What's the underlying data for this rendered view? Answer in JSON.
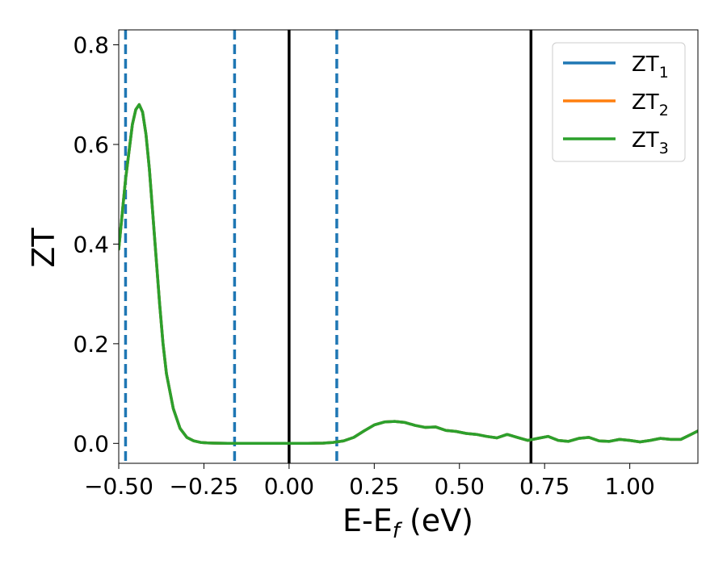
{
  "chart_data": {
    "type": "line",
    "title": "",
    "xlabel": "E-E",
    "xlabel_sub": "f",
    "xlabel_unit": " (eV)",
    "ylabel": "ZT",
    "xlim": [
      -0.5,
      1.2
    ],
    "ylim": [
      -0.04,
      0.83
    ],
    "grid": false,
    "legend_position": "top-right",
    "xticks": [
      -0.5,
      -0.25,
      0.0,
      0.25,
      0.5,
      0.75,
      1.0
    ],
    "xtick_labels": [
      "−0.50",
      "−0.25",
      "0.00",
      "0.25",
      "0.50",
      "0.75",
      "1.00"
    ],
    "yticks": [
      0.0,
      0.2,
      0.4,
      0.6,
      0.8
    ],
    "ytick_labels": [
      "0.0",
      "0.2",
      "0.4",
      "0.6",
      "0.8"
    ],
    "x": [
      -0.5,
      -0.48,
      -0.46,
      -0.45,
      -0.44,
      -0.43,
      -0.42,
      -0.41,
      -0.4,
      -0.39,
      -0.38,
      -0.37,
      -0.36,
      -0.34,
      -0.32,
      -0.3,
      -0.28,
      -0.26,
      -0.24,
      -0.22,
      -0.2,
      -0.18,
      -0.15,
      -0.1,
      -0.05,
      0.0,
      0.05,
      0.1,
      0.13,
      0.16,
      0.19,
      0.22,
      0.25,
      0.28,
      0.31,
      0.34,
      0.37,
      0.4,
      0.43,
      0.46,
      0.49,
      0.52,
      0.55,
      0.58,
      0.61,
      0.64,
      0.67,
      0.7,
      0.73,
      0.76,
      0.79,
      0.82,
      0.85,
      0.88,
      0.91,
      0.94,
      0.97,
      1.0,
      1.03,
      1.06,
      1.09,
      1.12,
      1.15,
      1.18,
      1.2
    ],
    "series": [
      {
        "name": "ZT",
        "sub": "1",
        "color": "#1f77b4",
        "values": [
          0.39,
          0.53,
          0.64,
          0.67,
          0.68,
          0.665,
          0.62,
          0.55,
          0.46,
          0.37,
          0.28,
          0.2,
          0.14,
          0.07,
          0.03,
          0.012,
          0.005,
          0.002,
          0.001,
          0.0005,
          0.0003,
          0.0002,
          0.0001,
          0.0,
          0.0,
          0.0,
          0.0,
          0.0005,
          0.002,
          0.005,
          0.012,
          0.025,
          0.037,
          0.043,
          0.044,
          0.042,
          0.036,
          0.032,
          0.033,
          0.026,
          0.024,
          0.02,
          0.018,
          0.014,
          0.011,
          0.018,
          0.012,
          0.006,
          0.01,
          0.014,
          0.006,
          0.004,
          0.01,
          0.012,
          0.005,
          0.004,
          0.008,
          0.006,
          0.003,
          0.006,
          0.01,
          0.008,
          0.008,
          0.018,
          0.025
        ]
      },
      {
        "name": "ZT",
        "sub": "2",
        "color": "#ff7f0e",
        "values": [
          0.39,
          0.53,
          0.64,
          0.67,
          0.68,
          0.665,
          0.62,
          0.55,
          0.46,
          0.37,
          0.28,
          0.2,
          0.14,
          0.07,
          0.03,
          0.012,
          0.005,
          0.002,
          0.001,
          0.0005,
          0.0003,
          0.0002,
          0.0001,
          0.0,
          0.0,
          0.0,
          0.0,
          0.0005,
          0.002,
          0.005,
          0.012,
          0.025,
          0.037,
          0.043,
          0.044,
          0.042,
          0.036,
          0.032,
          0.033,
          0.026,
          0.024,
          0.02,
          0.018,
          0.014,
          0.011,
          0.018,
          0.012,
          0.006,
          0.01,
          0.014,
          0.006,
          0.004,
          0.01,
          0.012,
          0.005,
          0.004,
          0.008,
          0.006,
          0.003,
          0.006,
          0.01,
          0.008,
          0.008,
          0.018,
          0.025
        ]
      },
      {
        "name": "ZT",
        "sub": "3",
        "color": "#2ca02c",
        "values": [
          0.39,
          0.53,
          0.64,
          0.67,
          0.68,
          0.665,
          0.62,
          0.55,
          0.46,
          0.37,
          0.28,
          0.2,
          0.14,
          0.07,
          0.03,
          0.012,
          0.005,
          0.002,
          0.001,
          0.0005,
          0.0003,
          0.0002,
          0.0001,
          0.0,
          0.0,
          0.0,
          0.0,
          0.0005,
          0.002,
          0.005,
          0.012,
          0.025,
          0.037,
          0.043,
          0.044,
          0.042,
          0.036,
          0.032,
          0.033,
          0.026,
          0.024,
          0.02,
          0.018,
          0.014,
          0.011,
          0.018,
          0.012,
          0.006,
          0.01,
          0.014,
          0.006,
          0.004,
          0.01,
          0.012,
          0.005,
          0.004,
          0.008,
          0.006,
          0.003,
          0.006,
          0.01,
          0.008,
          0.008,
          0.018,
          0.025
        ]
      }
    ],
    "vlines": [
      {
        "x": -0.48,
        "style": "dashed",
        "color": "#1f77b4"
      },
      {
        "x": -0.16,
        "style": "dashed",
        "color": "#1f77b4"
      },
      {
        "x": 0.0,
        "style": "solid",
        "color": "#000000"
      },
      {
        "x": 0.14,
        "style": "dashed",
        "color": "#1f77b4"
      },
      {
        "x": 0.71,
        "style": "solid",
        "color": "#000000"
      }
    ]
  }
}
